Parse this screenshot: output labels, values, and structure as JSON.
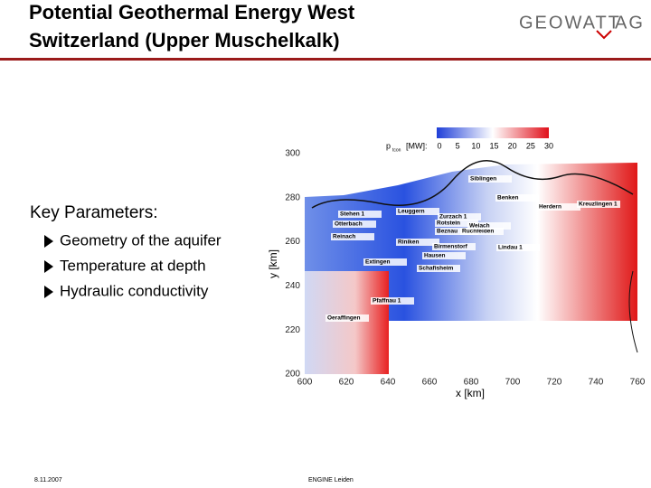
{
  "header": {
    "title_line1": "Potential Geothermal Energy West",
    "title_line2": "Switzerland (Upper Muschelkalk)",
    "logo_left": "GEOWATT",
    "logo_right": "AG"
  },
  "body": {
    "heading": "Key Parameters:",
    "bullets": [
      "Geometry of the aquifer",
      "Temperature at depth",
      "Hydraulic conductivity"
    ]
  },
  "map": {
    "colorbar": {
      "symbol": "p",
      "subscript": "tcon",
      "unit": "[MW]:",
      "ticks": [
        0,
        5,
        10,
        15,
        20,
        25,
        30
      ]
    },
    "xlabel": "x [km]",
    "ylabel": "y [km]",
    "xticks": [
      600,
      620,
      640,
      660,
      680,
      700,
      720,
      740,
      760
    ],
    "yticks": [
      300,
      280,
      260,
      240,
      220,
      200
    ],
    "places": [
      "Siblingen",
      "Benken",
      "Herdern",
      "Kreuzlingen 1",
      "Leuggern",
      "Zurzach 1",
      "Rotstein",
      "Beznau",
      "Ruchfelden",
      "Weiach",
      "Riniken",
      "Birmenstorf",
      "Hausen",
      "Lindau 1",
      "Schafisheim",
      "Extingen",
      "Pfaffnau 1",
      "Oeraffingen",
      "Stehen 1",
      "Otterbach",
      "Reinach"
    ]
  },
  "footer": {
    "date": "8.11.2007",
    "event": "ENGINE Leiden"
  }
}
